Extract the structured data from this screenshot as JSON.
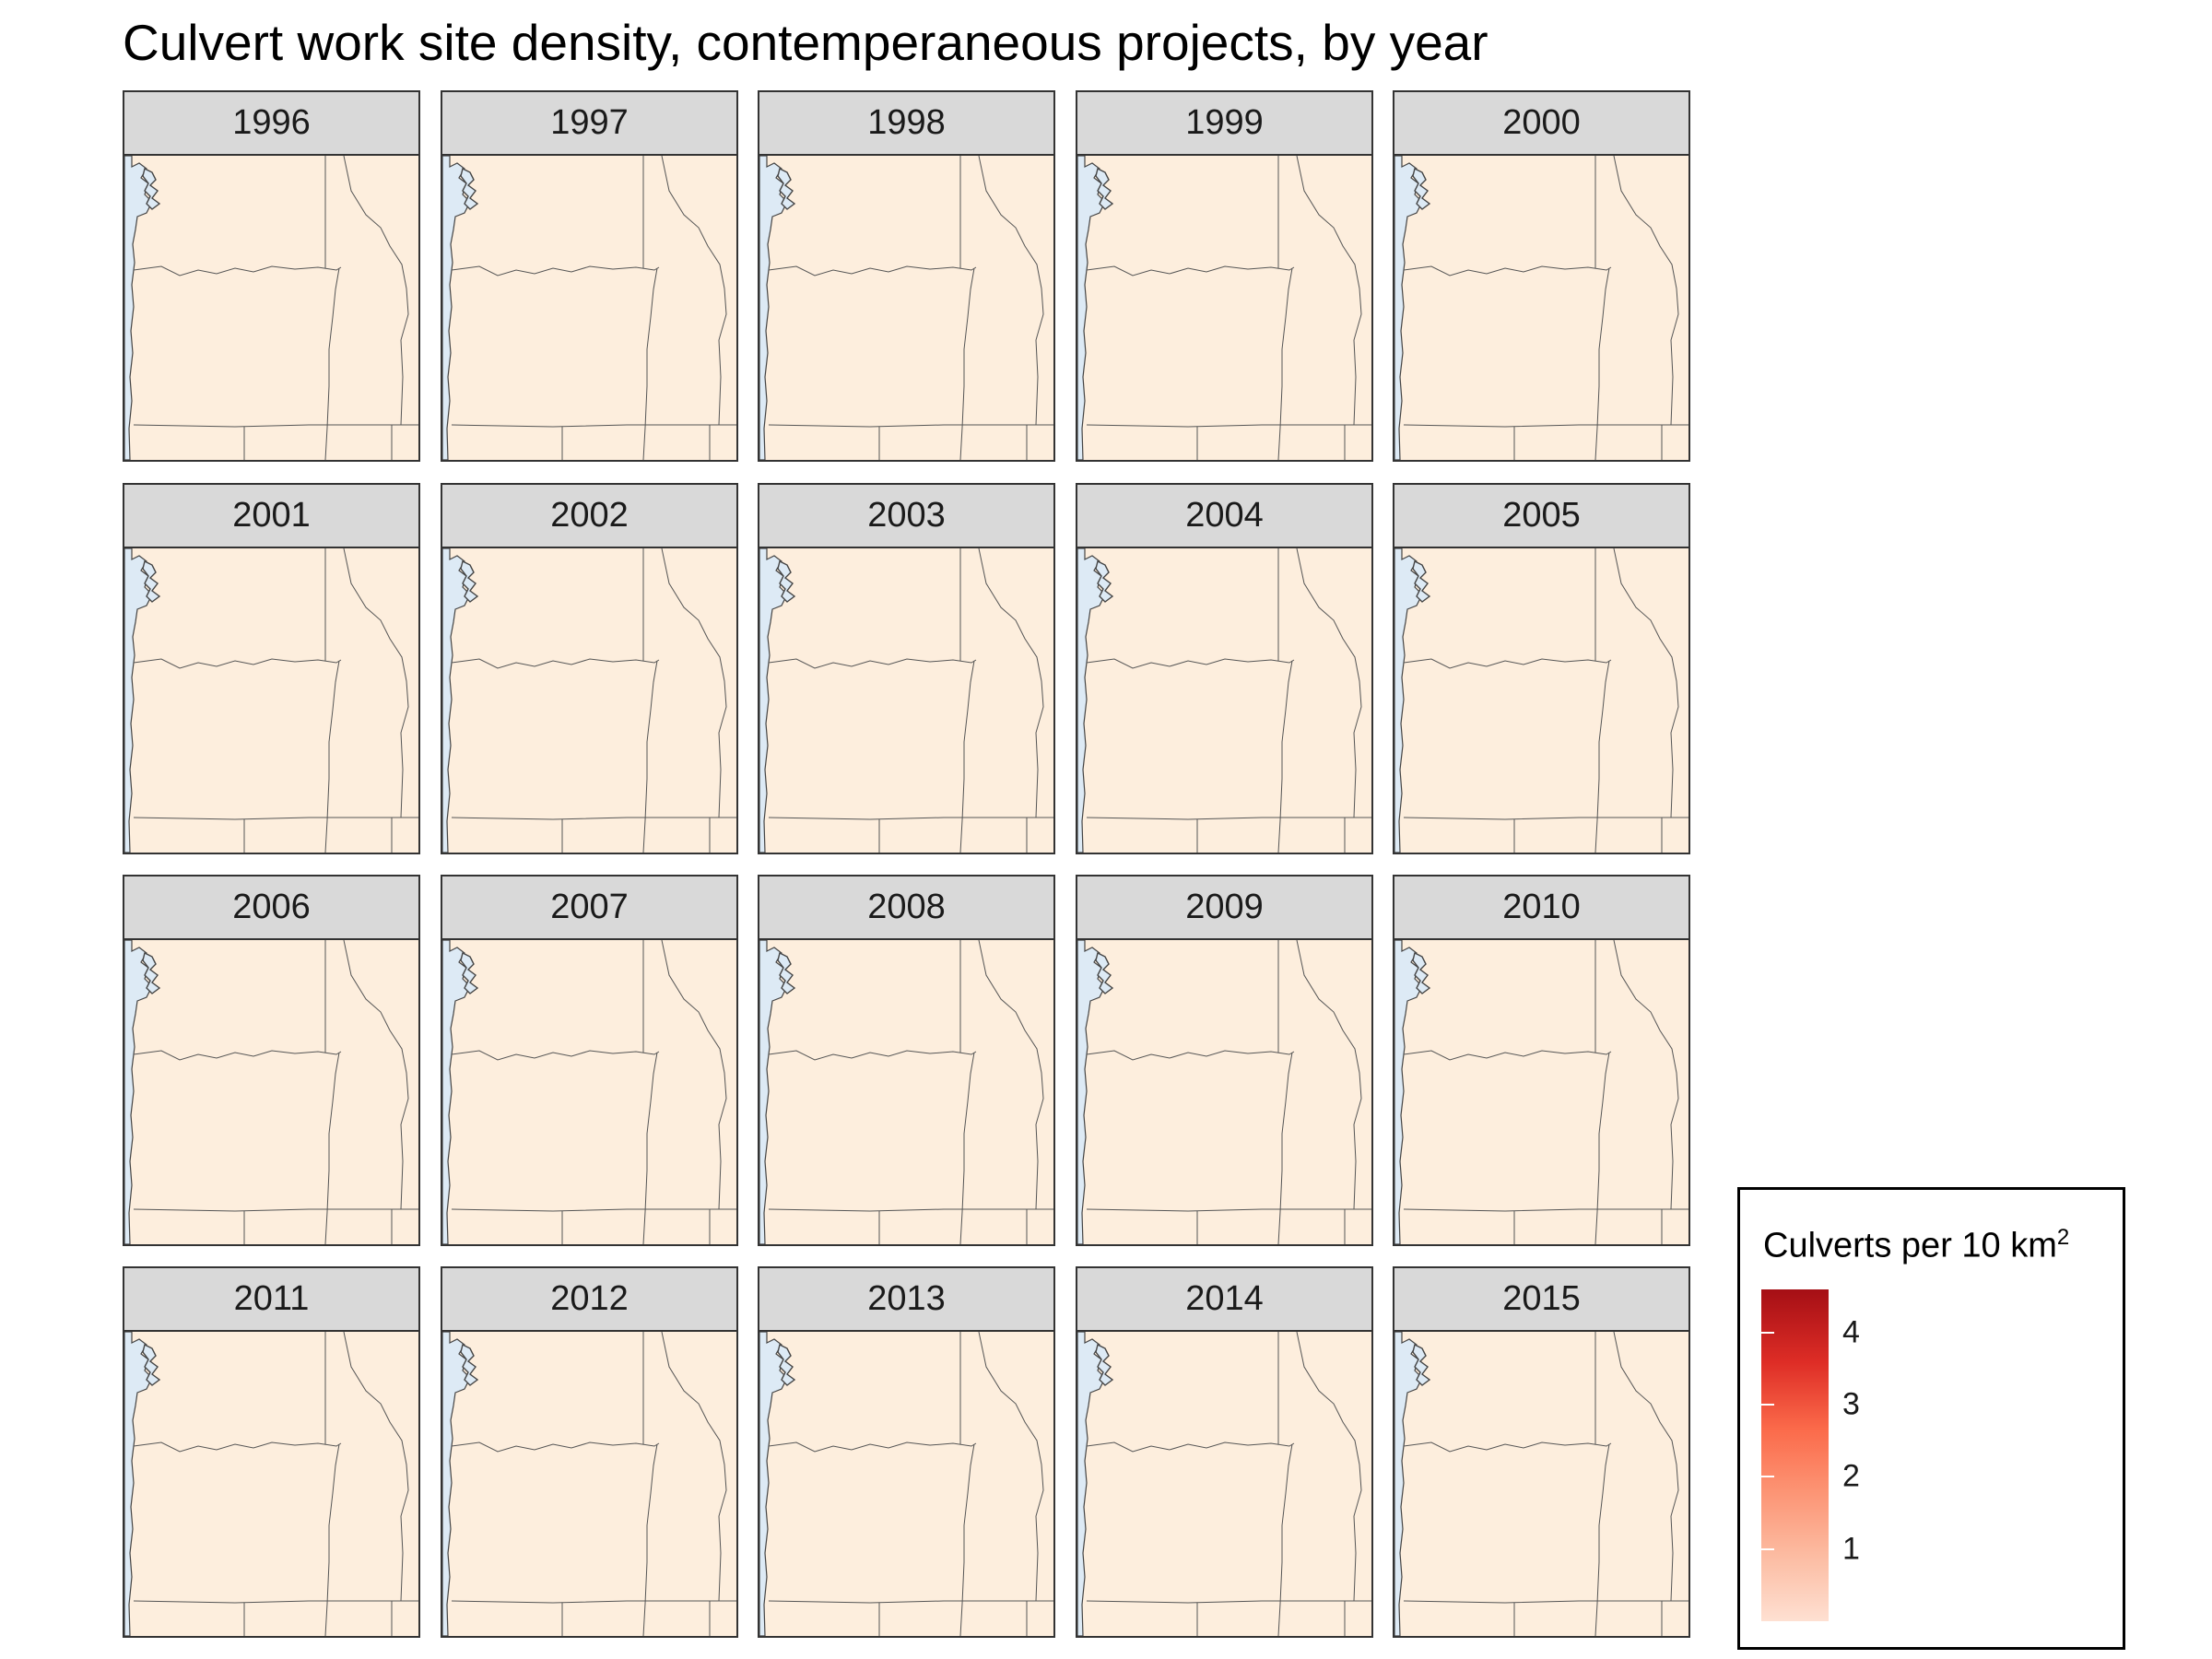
{
  "title": "Culvert work site density, contemperaneous projects, by year",
  "legend": {
    "title": "Culverts per 10 km",
    "title_superscript": "2",
    "ticks": [
      "4",
      "3",
      "2",
      "1"
    ],
    "tick_values": [
      4,
      3,
      2,
      1
    ],
    "range": [
      0,
      4.6
    ],
    "colors": {
      "low": "#fee0d2",
      "high": "#a50f15",
      "na": "#707070"
    }
  },
  "map": {
    "land_color": "#fdeedd",
    "water_color": "#ddeaf5",
    "border_color": "#555555"
  },
  "panels": [
    {
      "year": "1996"
    },
    {
      "year": "1997"
    },
    {
      "year": "1998"
    },
    {
      "year": "1999"
    },
    {
      "year": "2000"
    },
    {
      "year": "2001"
    },
    {
      "year": "2002"
    },
    {
      "year": "2003"
    },
    {
      "year": "2004"
    },
    {
      "year": "2005"
    },
    {
      "year": "2006"
    },
    {
      "year": "2007"
    },
    {
      "year": "2008"
    },
    {
      "year": "2009"
    },
    {
      "year": "2010"
    },
    {
      "year": "2011"
    },
    {
      "year": "2012"
    },
    {
      "year": "2013"
    },
    {
      "year": "2014"
    },
    {
      "year": "2015"
    }
  ]
}
